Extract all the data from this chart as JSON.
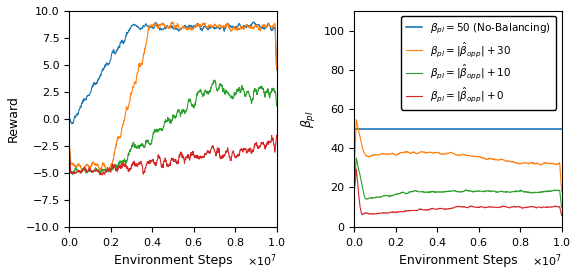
{
  "fig_width": 5.78,
  "fig_height": 2.76,
  "dpi": 100,
  "left_ylabel": "Reward",
  "right_ylabel": "$\\beta_{pl}$",
  "xlabel": "Environment Steps",
  "left_ylim": [
    -10.0,
    10.0
  ],
  "right_ylim": [
    0,
    110
  ],
  "xlim": [
    0,
    10000000.0
  ],
  "legend_labels": [
    "$\\beta_{pl} = 50$ (No-Balancing)",
    "$\\beta_{pl} = |\\hat{\\beta}_{opp}| + 30$",
    "$\\beta_{pl} = |\\hat{\\beta}_{opp}| + 10$",
    "$\\beta_{pl} = |\\hat{\\beta}_{opp}| + 0$"
  ],
  "colors": [
    "#1f77b4",
    "#ff7f0e",
    "#2ca02c",
    "#d62728"
  ],
  "seed": 42,
  "n_steps": 1000,
  "beta_fixed": 50,
  "right_yticks": [
    0,
    20,
    40,
    60,
    80,
    100
  ],
  "left_yticks": [
    -10.0,
    -7.5,
    -5.0,
    -2.5,
    0.0,
    2.5,
    5.0,
    7.5,
    10.0
  ]
}
